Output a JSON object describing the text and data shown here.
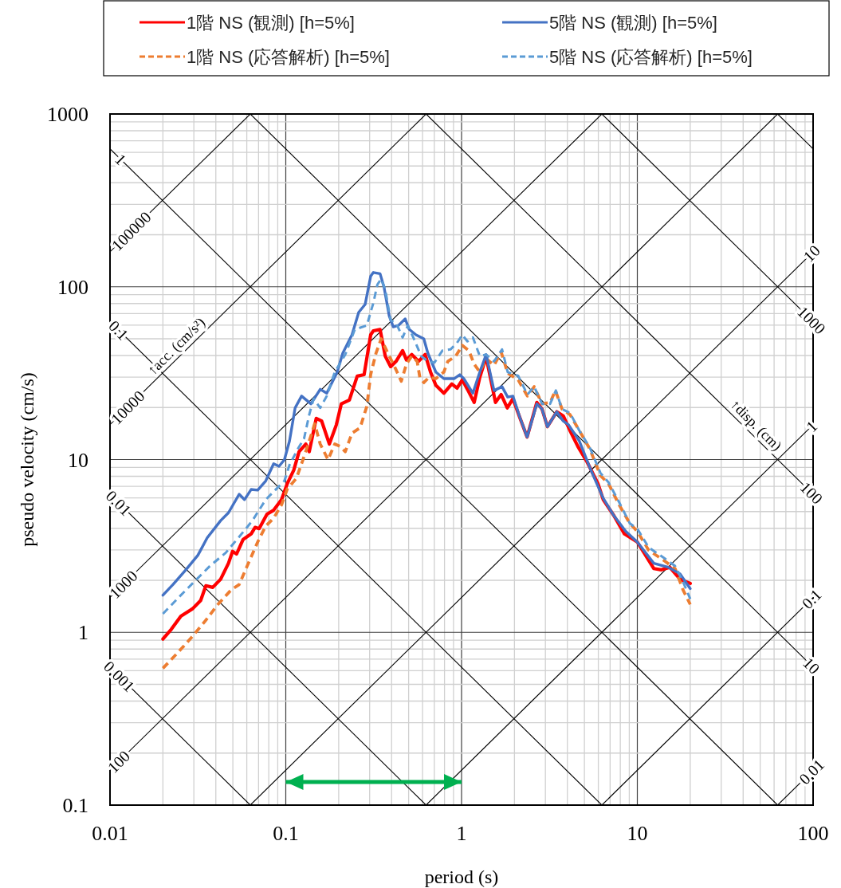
{
  "chart_data": {
    "type": "line",
    "xlabel": "period (s)",
    "ylabel": "pseudo velocity (cm/s)",
    "log": "xy",
    "grid": true,
    "legend": "top",
    "xlim": [
      0.01,
      100
    ],
    "ylim": [
      0.1,
      1000
    ],
    "xticks": [
      0.01,
      0.1,
      1,
      10,
      100
    ],
    "yticks": [
      0.1,
      1,
      10,
      100,
      1000
    ],
    "series": [
      {
        "name": "1階 NS (観測) [h=5%]",
        "color": "#ff0000",
        "line_style": "solid",
        "x": [
          0.02,
          0.0223,
          0.0253,
          0.0295,
          0.0328,
          0.0351,
          0.0384,
          0.0426,
          0.0472,
          0.0498,
          0.0525,
          0.0572,
          0.0635,
          0.0669,
          0.0705,
          0.0782,
          0.0853,
          0.0946,
          0.102,
          0.111,
          0.119,
          0.13,
          0.136,
          0.149,
          0.16,
          0.177,
          0.194,
          0.207,
          0.23,
          0.255,
          0.279,
          0.304,
          0.315,
          0.344,
          0.368,
          0.395,
          0.424,
          0.462,
          0.486,
          0.521,
          0.569,
          0.621,
          0.666,
          0.714,
          0.793,
          0.88,
          0.943,
          1.01,
          1.08,
          1.18,
          1.27,
          1.38,
          1.56,
          1.68,
          1.82,
          1.96,
          2.14,
          2.36,
          2.68,
          2.87,
          3.08,
          3.48,
          3.79,
          4.14,
          4.59,
          5.19,
          5.97,
          6.4,
          7.35,
          8.45,
          10.0,
          12.4,
          13.7,
          15.3,
          17.5,
          20
        ],
        "values": [
          0.914,
          1.04,
          1.24,
          1.37,
          1.53,
          1.86,
          1.82,
          2.03,
          2.51,
          2.94,
          2.84,
          3.45,
          3.71,
          4.05,
          3.98,
          4.83,
          5.09,
          5.86,
          7.26,
          8.67,
          11.1,
          12.3,
          11.1,
          17.3,
          16.7,
          12.3,
          15.9,
          21.0,
          22.1,
          30.4,
          31.0,
          52.7,
          55.6,
          56.6,
          39.7,
          34.5,
          37.0,
          42.7,
          37.7,
          40.5,
          37.0,
          40.5,
          32.1,
          26.9,
          24.2,
          27.4,
          25.9,
          28.9,
          25.5,
          21.4,
          29.9,
          39.2,
          21.4,
          23.8,
          19.9,
          22.5,
          17.6,
          13.5,
          21.4,
          19.6,
          15.5,
          18.9,
          17.9,
          14.7,
          11.9,
          9.64,
          7.26,
          5.86,
          4.74,
          3.71,
          3.33,
          2.34,
          2.3,
          2.38,
          2.03,
          1.92
        ]
      },
      {
        "name": "1階 NS (応答解析) [h=5%]",
        "color": "#ed7d31",
        "line_style": "dashed",
        "x": [
          0.02,
          0.0244,
          0.029,
          0.0345,
          0.0411,
          0.0489,
          0.0543,
          0.0603,
          0.0692,
          0.0769,
          0.0853,
          0.0946,
          0.102,
          0.115,
          0.127,
          0.139,
          0.146,
          0.157,
          0.174,
          0.19,
          0.204,
          0.218,
          0.238,
          0.265,
          0.289,
          0.304,
          0.326,
          0.349,
          0.381,
          0.416,
          0.454,
          0.486,
          0.521,
          0.559,
          0.579,
          0.61,
          0.653,
          0.714,
          0.793,
          0.835,
          0.927,
          1.01,
          1.1,
          1.18,
          1.27,
          1.38,
          1.53,
          1.68,
          1.83,
          2.1,
          2.37,
          2.59,
          2.87,
          3.19,
          3.42,
          3.73,
          4.14,
          4.68,
          5.37,
          6.17,
          6.85,
          7.88,
          9.06,
          10.0,
          11.6,
          14.2,
          16.4,
          18.2,
          20
        ],
        "values": [
          0.619,
          0.766,
          0.931,
          1.15,
          1.45,
          1.76,
          1.89,
          2.42,
          3.33,
          4.12,
          4.58,
          5.47,
          6.76,
          7.79,
          10.4,
          13.7,
          16.1,
          12.3,
          9.98,
          12.3,
          11.9,
          11.1,
          14.2,
          15.3,
          20.3,
          31.0,
          41.2,
          50.0,
          41.2,
          34.5,
          28.4,
          35.7,
          39.7,
          37.0,
          29.9,
          27.9,
          29.9,
          29.4,
          32.1,
          37.0,
          39.7,
          45.8,
          42.7,
          35.7,
          32.1,
          38.4,
          35.1,
          41.9,
          31.6,
          28.9,
          23.3,
          26.4,
          21.0,
          21.4,
          25.1,
          19.6,
          18.2,
          14.7,
          11.5,
          8.07,
          7.26,
          5.47,
          4.27,
          3.84,
          2.99,
          2.6,
          2.34,
          1.76,
          1.45
        ]
      },
      {
        "name": "5階 NS (観測) [h=5%]",
        "color": "#4472c4",
        "line_style": "solid",
        "x": [
          0.02,
          0.0228,
          0.027,
          0.0316,
          0.0357,
          0.0426,
          0.0472,
          0.0543,
          0.0582,
          0.0635,
          0.0692,
          0.0769,
          0.0853,
          0.0915,
          0.0982,
          0.105,
          0.113,
          0.123,
          0.139,
          0.157,
          0.171,
          0.196,
          0.211,
          0.238,
          0.26,
          0.283,
          0.304,
          0.315,
          0.344,
          0.362,
          0.388,
          0.409,
          0.438,
          0.478,
          0.503,
          0.55,
          0.61,
          0.643,
          0.714,
          0.793,
          0.91,
          0.977,
          1.03,
          1.16,
          1.27,
          1.38,
          1.53,
          1.7,
          1.83,
          1.96,
          2.14,
          2.36,
          2.68,
          2.87,
          3.08,
          3.48,
          3.79,
          4.06,
          4.68,
          5.37,
          6.4,
          7.35,
          8.59,
          10.0,
          12.4,
          15.0,
          17.5,
          20
        ],
        "values": [
          1.64,
          1.89,
          2.3,
          2.79,
          3.52,
          4.43,
          4.92,
          6.3,
          5.86,
          6.71,
          6.65,
          7.52,
          9.46,
          9.14,
          9.97,
          12.8,
          19.9,
          23.3,
          21.0,
          25.5,
          24.2,
          32.0,
          41.3,
          52.7,
          71.2,
          79.2,
          115,
          121,
          119,
          99.7,
          67.6,
          58.6,
          59.8,
          65.2,
          56.8,
          52.7,
          50.0,
          41.3,
          32.1,
          29.4,
          29.4,
          31.0,
          29.4,
          24.2,
          32.1,
          40.5,
          25.1,
          26.4,
          23.0,
          23.3,
          17.7,
          13.5,
          21.0,
          19.6,
          15.5,
          18.9,
          16.7,
          15.9,
          12.8,
          8.97,
          5.97,
          4.74,
          3.84,
          3.33,
          2.51,
          2.38,
          2.18,
          1.79
        ]
      },
      {
        "name": "5階 NS (応答解析) [h=5%]",
        "color": "#5b9bd5",
        "line_style": "dashed",
        "x": [
          0.02,
          0.0244,
          0.0301,
          0.037,
          0.0456,
          0.0543,
          0.0646,
          0.0769,
          0.0884,
          0.0982,
          0.105,
          0.117,
          0.127,
          0.136,
          0.144,
          0.157,
          0.171,
          0.19,
          0.218,
          0.247,
          0.289,
          0.315,
          0.332,
          0.349,
          0.368,
          0.395,
          0.424,
          0.462,
          0.495,
          0.54,
          0.589,
          0.643,
          0.701,
          0.778,
          0.865,
          0.943,
          1.01,
          1.08,
          1.16,
          1.27,
          1.38,
          1.53,
          1.7,
          1.83,
          2.1,
          2.37,
          2.59,
          2.87,
          3.19,
          3.44,
          3.73,
          4.14,
          4.68,
          5.37,
          6.17,
          6.85,
          7.88,
          9.06,
          10.0,
          11.6,
          14.2,
          16.4,
          18.2,
          20
        ],
        "values": [
          1.28,
          1.58,
          1.96,
          2.42,
          2.89,
          3.57,
          4.43,
          5.86,
          6.76,
          7.52,
          9.31,
          11.5,
          13.2,
          18.2,
          22.5,
          19.9,
          23.3,
          32.1,
          40.5,
          56.6,
          59.7,
          80.7,
          103,
          111,
          96.3,
          64.0,
          61.8,
          50.9,
          59.7,
          49.1,
          39.7,
          37.0,
          36.4,
          42.7,
          43.4,
          47.4,
          52.7,
          48.3,
          50.9,
          39.7,
          40.5,
          37.0,
          43.4,
          32.1,
          30.5,
          23.8,
          26.4,
          21.0,
          21.0,
          25.1,
          19.6,
          18.6,
          14.7,
          11.7,
          8.36,
          7.39,
          5.66,
          4.27,
          3.98,
          3.1,
          2.69,
          2.42,
          1.96,
          1.56
        ]
      },
      {
        "type": "line",
        "color": "#000000",
        "x": [
          62.83,
          100
        ],
        "values": [
          0.1,
          0.1592
        ]
      },
      {
        "type": "line",
        "color": "#000000",
        "x": [
          6.283,
          100
        ],
        "values": [
          0.1,
          1.592
        ]
      },
      {
        "type": "line",
        "color": "#000000",
        "x": [
          0.6283,
          100
        ],
        "values": [
          0.1,
          15.92
        ]
      },
      {
        "type": "line",
        "color": "#000000",
        "x": [
          0.06283,
          100
        ],
        "values": [
          0.1,
          159.2
        ]
      },
      {
        "type": "line",
        "color": "#000000",
        "x": [
          0.01,
          62.83
        ],
        "values": [
          0.1592,
          1000
        ]
      },
      {
        "type": "line",
        "color": "#000000",
        "x": [
          0.01,
          6.283
        ],
        "values": [
          1.592,
          1000
        ]
      },
      {
        "type": "line",
        "color": "#000000",
        "x": [
          0.01,
          0.6283
        ],
        "values": [
          15.92,
          1000
        ]
      },
      {
        "type": "line",
        "color": "#000000",
        "x": [
          0.01,
          0.06283
        ],
        "values": [
          159.2,
          1000
        ]
      },
      {
        "type": "line",
        "color": "#000000",
        "x": [
          0.01,
          0.06283
        ],
        "values": [
          0.6283,
          0.1
        ]
      },
      {
        "type": "line",
        "color": "#000000",
        "x": [
          0.01,
          0.6283
        ],
        "values": [
          6.283,
          0.1
        ]
      },
      {
        "type": "line",
        "color": "#000000",
        "x": [
          0.01,
          6.283
        ],
        "values": [
          62.83,
          0.1
        ]
      },
      {
        "type": "line",
        "color": "#000000",
        "x": [
          0.01,
          62.83
        ],
        "values": [
          628.3,
          0.1
        ]
      },
      {
        "type": "line",
        "color": "#000000",
        "x": [
          0.06283,
          100
        ],
        "values": [
          1000,
          0.6283
        ]
      },
      {
        "type": "line",
        "color": "#000000",
        "x": [
          0.6283,
          100
        ],
        "values": [
          1000,
          6.283
        ]
      },
      {
        "type": "line",
        "color": "#000000",
        "x": [
          6.283,
          100
        ],
        "values": [
          1000,
          62.83
        ]
      },
      {
        "type": "line",
        "color": "#000000",
        "x": [
          62.83,
          100
        ],
        "values": [
          1000,
          628.3
        ]
      },
      {
        "type": "line",
        "color": "#00b050",
        "line_style": "solid",
        "x": [
          0.1,
          1
        ],
        "values": [
          0.136,
          0.136
        ]
      }
    ],
    "annotations": [
      {
        "text": "1",
        "x": 0.0115,
        "y": 546.4
      },
      {
        "text": "100000",
        "x": 0.0132,
        "y": 210.1
      },
      {
        "text": "0.1",
        "x": 0.0112,
        "y": 56.1
      },
      {
        "text": "10000",
        "x": 0.0126,
        "y": 20.05
      },
      {
        "text": "0.01",
        "x": 0.0112,
        "y": 5.61
      },
      {
        "text": "1000",
        "x": 0.0119,
        "y": 1.894
      },
      {
        "text": "0.001",
        "x": 0.0113,
        "y": 0.556
      },
      {
        "text": "100",
        "x": 0.0112,
        "y": 0.1783
      },
      {
        "text": "↑acc. (cm/s²)",
        "x": 0.026,
        "y": 41.4
      },
      {
        "text": "10",
        "x": 98,
        "y": 155.97
      },
      {
        "text": "1000",
        "x": 98,
        "y": 64.11
      },
      {
        "text": "1",
        "x": 98,
        "y": 15.6
      },
      {
        "text": "100",
        "x": 98,
        "y": 6.411
      },
      {
        "text": "0.1",
        "x": 98,
        "y": 1.56
      },
      {
        "text": "10",
        "x": 98,
        "y": 0.6411
      },
      {
        "text": "0.01",
        "x": 98,
        "y": 0.156
      },
      {
        "text": "↑disp. (cm)",
        "x": 43.4,
        "y": 14.48
      }
    ]
  }
}
